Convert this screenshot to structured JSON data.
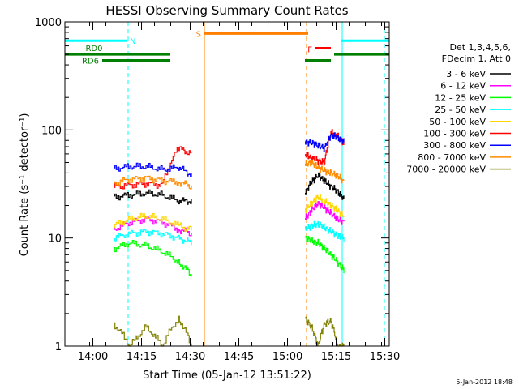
{
  "chart_data": {
    "type": "line",
    "title": "HESSI Observing Summary Count Rates",
    "xlabel": "Start Time (05-Jan-12 13:51:22)",
    "ylabel": "Count Rate (s⁻¹ detector⁻¹)",
    "y_scale": "log",
    "ylim": [
      1,
      1000
    ],
    "y_ticks": [
      1,
      10,
      100,
      1000
    ],
    "y_tick_labels": [
      "1",
      "10",
      "100",
      "1000"
    ],
    "x_unit": "minutes after 13:51:22",
    "xlim": [
      0,
      100
    ],
    "x_ticks": [
      8.63,
      23.63,
      38.63,
      53.63,
      68.63,
      83.63,
      98.63
    ],
    "x_tick_labels": [
      "14:00",
      "14:15",
      "14:30",
      "14:45",
      "15:00",
      "15:15",
      "15:30"
    ],
    "date_stamp": "5-Jan-2012 18:48",
    "legend": {
      "position": "right",
      "header": [
        "Det 1,3,4,5,6,",
        "FDecim 1, Att 0"
      ]
    },
    "series": [
      {
        "name": "3 - 6 keV",
        "color": "#000000",
        "segments": [
          {
            "x": [
              15.0,
              20.0,
              25.0,
              30.0,
              35.0,
              39.0
            ],
            "y": [
              24,
              25,
              26,
              25,
              22,
              22
            ]
          },
          {
            "x": [
              74.0,
              76.0,
              78.0,
              80.0,
              82.0,
              84.0,
              86.0
            ],
            "y": [
              26,
              33,
              38,
              34,
              30,
              27,
              23
            ]
          }
        ]
      },
      {
        "name": "6 - 12 keV",
        "color": "#ff00ff",
        "segments": [
          {
            "x": [
              15.0,
              20.0,
              25.0,
              30.0,
              35.0,
              39.0
            ],
            "y": [
              12,
              14,
              15,
              14,
              12,
              11
            ]
          },
          {
            "x": [
              74.0,
              76.0,
              78.0,
              80.0,
              82.0,
              84.0,
              86.0
            ],
            "y": [
              15,
              18,
              21,
              19,
              17,
              15,
              14
            ]
          }
        ]
      },
      {
        "name": "12 - 25 keV",
        "color": "#00ff00",
        "segments": [
          {
            "x": [
              15.0,
              20.0,
              25.0,
              30.0,
              35.0,
              39.0
            ],
            "y": [
              8,
              9,
              8.5,
              7.5,
              6,
              4.5
            ]
          },
          {
            "x": [
              74.0,
              76.0,
              78.0,
              80.0,
              82.0,
              84.0,
              86.0
            ],
            "y": [
              10,
              9.5,
              9,
              8,
              7,
              6,
              5
            ]
          }
        ]
      },
      {
        "name": "25 - 50 keV",
        "color": "#00ffff",
        "segments": [
          {
            "x": [
              15.0,
              20.0,
              25.0,
              30.0,
              35.0,
              39.0
            ],
            "y": [
              10,
              11,
              11.5,
              11,
              10,
              9
            ]
          },
          {
            "x": [
              74.0,
              76.0,
              78.0,
              80.0,
              82.0,
              84.0,
              86.0
            ],
            "y": [
              12,
              13,
              13.5,
              12.5,
              11.5,
              10.5,
              10
            ]
          }
        ]
      },
      {
        "name": "50 - 100 keV",
        "color": "#ffd700",
        "segments": [
          {
            "x": [
              15.0,
              20.0,
              25.0,
              30.0,
              35.0,
              39.0
            ],
            "y": [
              13,
              15,
              16,
              15,
              13,
              12
            ]
          },
          {
            "x": [
              74.0,
              76.0,
              78.0,
              80.0,
              82.0,
              84.0,
              86.0
            ],
            "y": [
              18,
              21,
              24,
              22,
              20,
              18,
              16
            ]
          }
        ]
      },
      {
        "name": "100 - 300 keV",
        "color": "#ff0000",
        "segments": [
          {
            "x": [
              15.0,
              20.0,
              25.0,
              30.0,
              35.0,
              39.0
            ],
            "y": [
              30,
              31,
              32,
              31,
              68,
              60
            ]
          },
          {
            "x": [
              74.0,
              76.0,
              78.0,
              80.0,
              82.0,
              84.0,
              86.0
            ],
            "y": [
              60,
              55,
              52,
              50,
              95,
              88,
              75
            ]
          }
        ]
      },
      {
        "name": "300 - 800 keV",
        "color": "#0000ff",
        "segments": [
          {
            "x": [
              15.0,
              20.0,
              25.0,
              30.0,
              35.0,
              39.0
            ],
            "y": [
              44,
              46,
              46,
              43,
              45,
              38
            ]
          },
          {
            "x": [
              74.0,
              76.0,
              78.0,
              80.0,
              82.0,
              84.0,
              86.0
            ],
            "y": [
              78,
              76,
              72,
              68,
              90,
              85,
              78
            ]
          }
        ]
      },
      {
        "name": "800 - 7000 keV",
        "color": "#ff8c00",
        "segments": [
          {
            "x": [
              15.0,
              20.0,
              25.0,
              30.0,
              35.0,
              39.0
            ],
            "y": [
              32,
              35,
              36,
              34,
              33,
              30
            ]
          },
          {
            "x": [
              74.0,
              76.0,
              78.0,
              80.0,
              82.0,
              84.0,
              86.0
            ],
            "y": [
              48,
              50,
              45,
              42,
              40,
              38,
              33
            ]
          }
        ]
      },
      {
        "name": "7000 - 20000 keV",
        "color": "#808000",
        "segments": [
          {
            "x": [
              15.0,
              20.0,
              25.0,
              30.0,
              35.0,
              39.0
            ],
            "y": [
              1.6,
              1.0,
              1.5,
              1.0,
              1.8,
              1.0
            ]
          },
          {
            "x": [
              74.0,
              76.0,
              78.0,
              80.0,
              82.0,
              84.0,
              86.0
            ],
            "y": [
              1.8,
              1.5,
              1.0,
              1.6,
              1.7,
              1.0,
              1.0
            ]
          }
        ]
      }
    ],
    "flag_bars": [
      {
        "label": "N",
        "color": "#00ffff",
        "segments": [
          [
            0,
            19
          ],
          [
            85,
            100
          ]
        ],
        "level": 670
      },
      {
        "label": "RD0",
        "color": "#008000",
        "segments": [
          [
            0,
            32.5
          ],
          [
            83,
            100
          ]
        ],
        "level": 500
      },
      {
        "label": "RD6",
        "color": "#008000",
        "segments": [
          [
            11.5,
            32.5
          ],
          [
            74,
            82
          ]
        ],
        "level": 440
      },
      {
        "label": "S",
        "color": "#ff8000",
        "segments": [
          [
            43,
            75
          ]
        ],
        "level": 780
      },
      {
        "label": "F",
        "color": "#ff0000",
        "segments": [
          [
            77,
            82
          ]
        ],
        "level": 570
      }
    ],
    "vertical_lines": [
      {
        "x": 19.5,
        "color": "#00ffff",
        "style": "dashed"
      },
      {
        "x": 43.0,
        "color": "#ff8000",
        "style": "solid"
      },
      {
        "x": 74.5,
        "color": "#ff8000",
        "style": "dashed"
      },
      {
        "x": 85.5,
        "color": "#00ffff",
        "style": "solid"
      },
      {
        "x": 98.5,
        "color": "#00ffff",
        "style": "dashed"
      }
    ]
  }
}
